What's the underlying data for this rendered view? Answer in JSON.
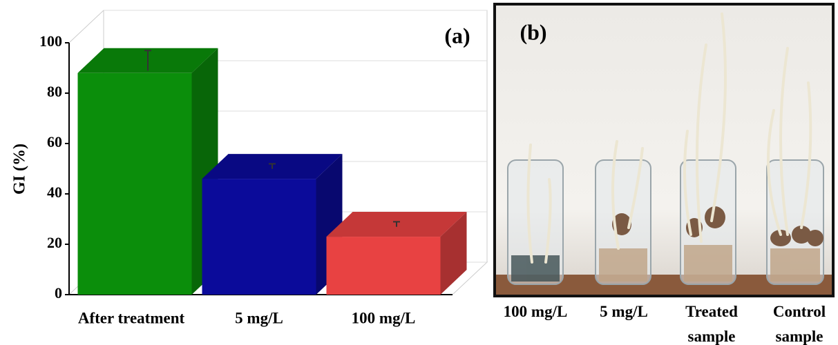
{
  "chart_data": {
    "type": "bar3d",
    "panel_label": "(a)",
    "y_label": "GI (%)",
    "categories": [
      "After treatment",
      "5 mg/L",
      "100 mg/L"
    ],
    "values": [
      88,
      46,
      23
    ],
    "errors": [
      4,
      1,
      1
    ],
    "colors": [
      "#0b8e0b",
      "#0b0b9a",
      "#e84242"
    ],
    "ylim": [
      0,
      100
    ],
    "yticks": [
      0,
      20,
      40,
      60,
      80,
      100
    ],
    "grid": true
  },
  "photo": {
    "panel_label": "(b)",
    "labels": [
      "100 mg/L",
      "5 mg/L",
      "Treated sample",
      "Control sample"
    ]
  }
}
